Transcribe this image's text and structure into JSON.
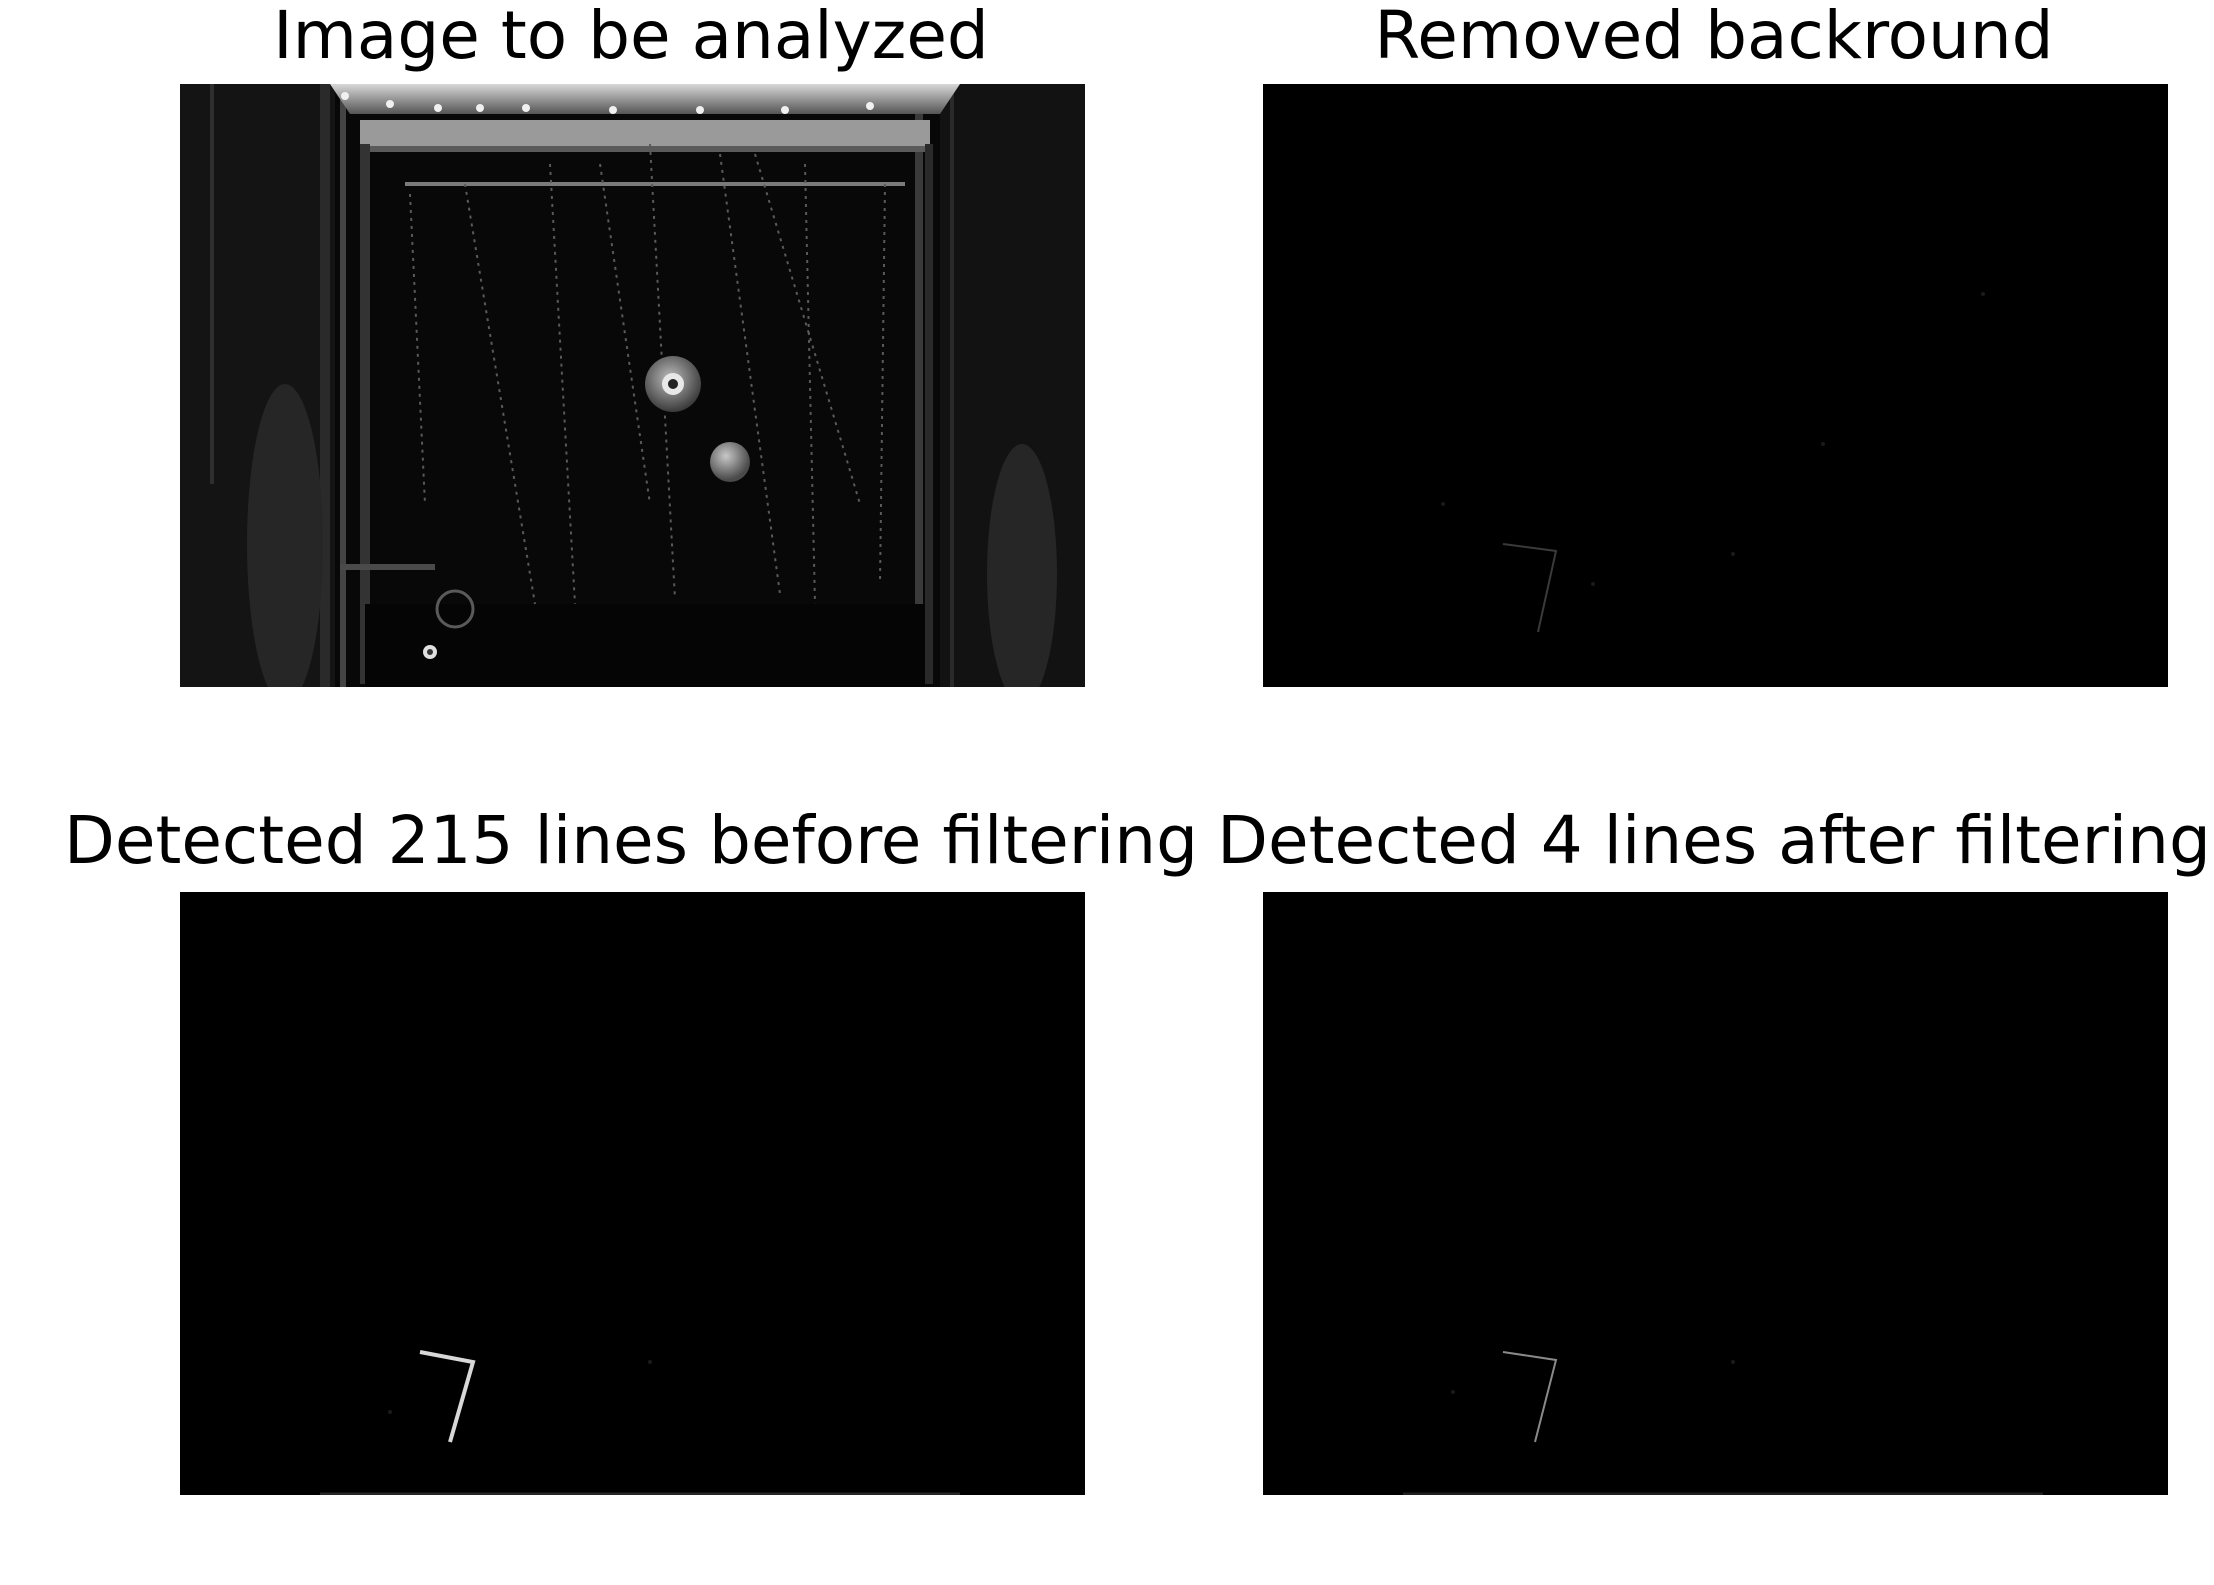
{
  "figure": {
    "panels": [
      {
        "title": "Image to be analyzed",
        "content": "photograph of a dark chamber with a metal frame, hanging fibers and two round objects"
      },
      {
        "title": "Removed backround",
        "content": "mostly black image after background subtraction"
      },
      {
        "title": "Detected 215 lines before filtering",
        "content": "black image with a bright bent line segment"
      },
      {
        "title": "Detected 4 lines after filtering",
        "content": "black image with a faint bent line segment"
      }
    ]
  },
  "colors": {
    "background": "#ffffff",
    "image_background": "#000000",
    "text": "#000000"
  }
}
